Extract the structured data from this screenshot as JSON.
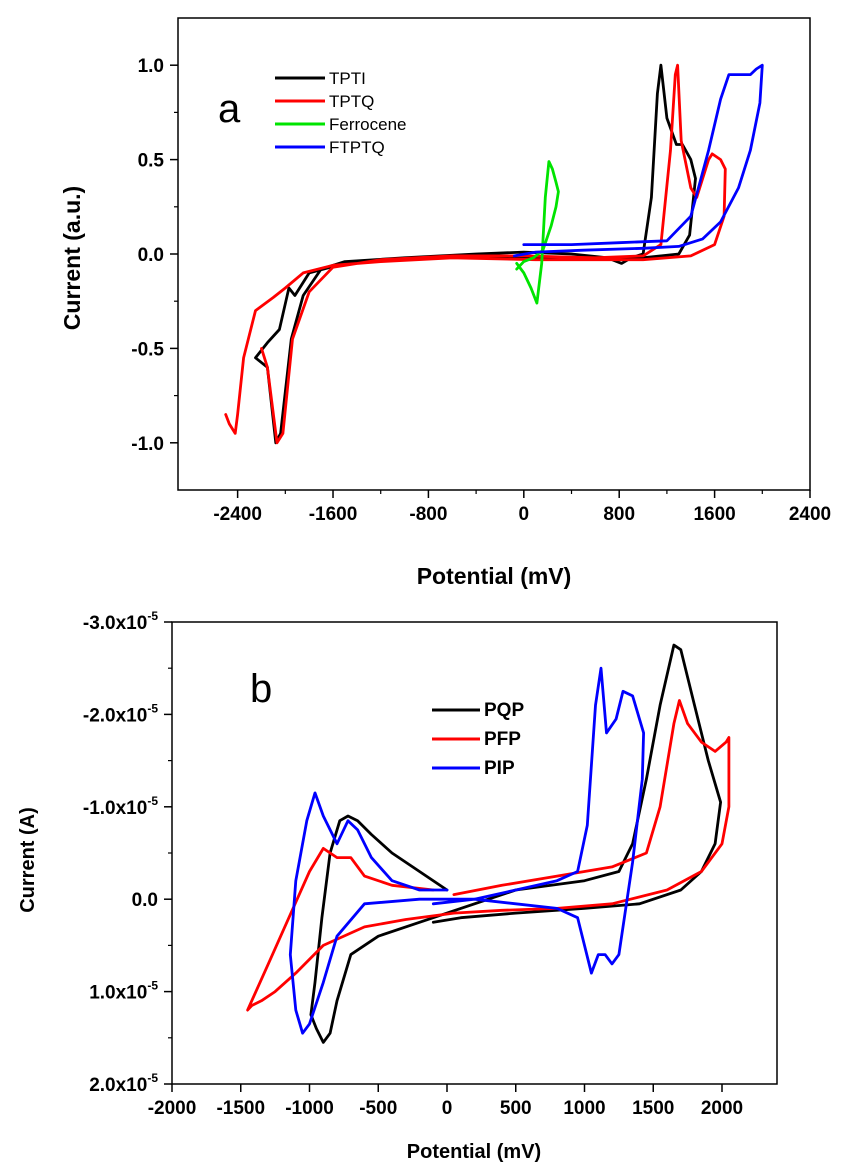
{
  "chart_data": [
    {
      "type": "line",
      "panel_label": "a",
      "xlabel": "Potential (mV)",
      "ylabel": "Current (a.u.)",
      "xlim": [
        -2900,
        2400
      ],
      "ylim": [
        -1.25,
        1.25
      ],
      "x_ticks": [
        -2400,
        -1600,
        -800,
        0,
        800,
        1600,
        2400
      ],
      "x_tick_labels": [
        "-2400",
        "-1600",
        "-800",
        "0",
        "800",
        "1600",
        "2400"
      ],
      "y_ticks": [
        -1.0,
        -0.5,
        0.0,
        0.5,
        1.0
      ],
      "y_tick_labels": [
        "-1.0",
        "-0.5",
        "0.0",
        "0.5",
        "1.0"
      ],
      "legend_position": "top-left",
      "series": [
        {
          "name": "TPTI",
          "color": "#000000",
          "points": [
            [
              -2250,
              -0.55
            ],
            [
              -2150,
              -0.6
            ],
            [
              -2080,
              -1.0
            ],
            [
              -2040,
              -0.95
            ],
            [
              -1950,
              -0.45
            ],
            [
              -1850,
              -0.22
            ],
            [
              -1700,
              -0.08
            ],
            [
              -1500,
              -0.04
            ],
            [
              -1000,
              -0.02
            ],
            [
              -400,
              0.0
            ],
            [
              0,
              0.01
            ],
            [
              400,
              0.0
            ],
            [
              700,
              -0.02
            ],
            [
              820,
              -0.05
            ],
            [
              900,
              -0.02
            ],
            [
              1000,
              0.0
            ],
            [
              1070,
              0.3
            ],
            [
              1120,
              0.85
            ],
            [
              1150,
              1.0
            ],
            [
              1200,
              0.72
            ],
            [
              1280,
              0.58
            ],
            [
              1330,
              0.58
            ],
            [
              1400,
              0.5
            ],
            [
              1440,
              0.4
            ],
            [
              1390,
              0.1
            ],
            [
              1300,
              0.0
            ],
            [
              1000,
              -0.02
            ],
            [
              600,
              -0.02
            ],
            [
              100,
              -0.02
            ],
            [
              -400,
              -0.01
            ],
            [
              -1000,
              -0.03
            ],
            [
              -1500,
              -0.05
            ],
            [
              -1800,
              -0.1
            ],
            [
              -1920,
              -0.22
            ],
            [
              -1970,
              -0.18
            ],
            [
              -2050,
              -0.4
            ],
            [
              -2150,
              -0.47
            ],
            [
              -2250,
              -0.55
            ]
          ]
        },
        {
          "name": "TPTQ",
          "color": "#ff0000",
          "points": [
            [
              -2200,
              -0.5
            ],
            [
              -2150,
              -0.6
            ],
            [
              -2100,
              -0.85
            ],
            [
              -2070,
              -1.0
            ],
            [
              -2020,
              -0.95
            ],
            [
              -1940,
              -0.45
            ],
            [
              -1800,
              -0.2
            ],
            [
              -1600,
              -0.07
            ],
            [
              -1200,
              -0.03
            ],
            [
              -600,
              -0.01
            ],
            [
              0,
              -0.01
            ],
            [
              600,
              -0.02
            ],
            [
              1000,
              -0.01
            ],
            [
              1150,
              0.05
            ],
            [
              1230,
              0.55
            ],
            [
              1270,
              0.95
            ],
            [
              1290,
              1.0
            ],
            [
              1320,
              0.6
            ],
            [
              1400,
              0.35
            ],
            [
              1450,
              0.3
            ],
            [
              1550,
              0.5
            ],
            [
              1580,
              0.53
            ],
            [
              1650,
              0.5
            ],
            [
              1690,
              0.45
            ],
            [
              1680,
              0.2
            ],
            [
              1600,
              0.05
            ],
            [
              1400,
              -0.01
            ],
            [
              1000,
              -0.03
            ],
            [
              600,
              -0.03
            ],
            [
              100,
              -0.03
            ],
            [
              -600,
              -0.02
            ],
            [
              -1200,
              -0.04
            ],
            [
              -1600,
              -0.06
            ],
            [
              -1850,
              -0.1
            ],
            [
              -2000,
              -0.18
            ],
            [
              -2100,
              -0.23
            ],
            [
              -2250,
              -0.3
            ],
            [
              -2350,
              -0.55
            ],
            [
              -2400,
              -0.85
            ],
            [
              -2420,
              -0.95
            ],
            [
              -2470,
              -0.9
            ],
            [
              -2500,
              -0.85
            ]
          ]
        },
        {
          "name": "Ferrocene",
          "color": "#00e400",
          "points": [
            [
              -60,
              -0.05
            ],
            [
              0,
              -0.1
            ],
            [
              60,
              -0.18
            ],
            [
              110,
              -0.26
            ],
            [
              150,
              -0.05
            ],
            [
              180,
              0.3
            ],
            [
              210,
              0.49
            ],
            [
              240,
              0.45
            ],
            [
              270,
              0.38
            ],
            [
              290,
              0.33
            ],
            [
              270,
              0.25
            ],
            [
              230,
              0.15
            ],
            [
              160,
              0.02
            ],
            [
              80,
              -0.02
            ],
            [
              0,
              -0.04
            ],
            [
              -60,
              -0.08
            ]
          ]
        },
        {
          "name": "FTPTQ",
          "color": "#0000ff",
          "points": [
            [
              0,
              0.05
            ],
            [
              400,
              0.05
            ],
            [
              800,
              0.06
            ],
            [
              1200,
              0.07
            ],
            [
              1400,
              0.2
            ],
            [
              1550,
              0.55
            ],
            [
              1650,
              0.82
            ],
            [
              1720,
              0.95
            ],
            [
              1800,
              0.95
            ],
            [
              1900,
              0.95
            ],
            [
              1950,
              0.98
            ],
            [
              2000,
              1.0
            ],
            [
              1980,
              0.8
            ],
            [
              1900,
              0.55
            ],
            [
              1800,
              0.35
            ],
            [
              1650,
              0.17
            ],
            [
              1500,
              0.08
            ],
            [
              1300,
              0.04
            ],
            [
              1000,
              0.03
            ],
            [
              500,
              0.02
            ],
            [
              100,
              0.01
            ],
            [
              -80,
              -0.01
            ]
          ]
        }
      ]
    },
    {
      "type": "line",
      "panel_label": "b",
      "xlabel": "Potential (mV)",
      "ylabel": "Current (A)",
      "xlim": [
        -2000,
        2400
      ],
      "ylim": [
        2e-05,
        -3e-05
      ],
      "y_axis_inverted": true,
      "x_ticks": [
        -2000,
        -1500,
        -1000,
        -500,
        0,
        500,
        1000,
        1500,
        2000
      ],
      "x_tick_labels": [
        "-2000",
        "-1500",
        "-1000",
        "-500",
        "0",
        "500",
        "1000",
        "1500",
        "2000"
      ],
      "y_ticks": [
        -3e-05,
        -2e-05,
        -1e-05,
        0.0,
        1e-05,
        2e-05
      ],
      "y_tick_labels": [
        {
          "base": "-3.0x10",
          "exp": "-5"
        },
        {
          "base": "-2.0x10",
          "exp": "-5"
        },
        {
          "base": "-1.0x10",
          "exp": "-5"
        },
        {
          "base": "0.0",
          "exp": ""
        },
        {
          "base": "1.0x10",
          "exp": "-5"
        },
        {
          "base": "2.0x10",
          "exp": "-5"
        }
      ],
      "legend_position": "top-center",
      "series": [
        {
          "name": "PQP",
          "color": "#000000",
          "points": [
            [
              0,
              -1e-06
            ],
            [
              -200,
              -3e-06
            ],
            [
              -400,
              -5e-06
            ],
            [
              -550,
              -7e-06
            ],
            [
              -650,
              -8.5e-06
            ],
            [
              -720,
              -9e-06
            ],
            [
              -780,
              -8.5e-06
            ],
            [
              -850,
              -5e-06
            ],
            [
              -910,
              2e-06
            ],
            [
              -960,
              9e-06
            ],
            [
              -990,
              1.25e-05
            ],
            [
              -950,
              1.4e-05
            ],
            [
              -900,
              1.55e-05
            ],
            [
              -850,
              1.45e-05
            ],
            [
              -800,
              1.1e-05
            ],
            [
              -700,
              6e-06
            ],
            [
              -500,
              4e-06
            ],
            [
              -200,
              2.5e-06
            ],
            [
              100,
              1e-06
            ],
            [
              500,
              -1e-06
            ],
            [
              1000,
              -2e-06
            ],
            [
              1250,
              -3e-06
            ],
            [
              1350,
              -6e-06
            ],
            [
              1450,
              -1.3e-05
            ],
            [
              1550,
              -2.1e-05
            ],
            [
              1650,
              -2.75e-05
            ],
            [
              1700,
              -2.7e-05
            ],
            [
              1800,
              -2.1e-05
            ],
            [
              1900,
              -1.5e-05
            ],
            [
              1990,
              -1.05e-05
            ],
            [
              1950,
              -6e-06
            ],
            [
              1850,
              -3e-06
            ],
            [
              1700,
              -1e-06
            ],
            [
              1400,
              5e-07
            ],
            [
              1000,
              1e-06
            ],
            [
              500,
              1.5e-06
            ],
            [
              100,
              2e-06
            ],
            [
              -100,
              2.5e-06
            ]
          ]
        },
        {
          "name": "PFP",
          "color": "#ff0000",
          "points": [
            [
              50,
              -5e-07
            ],
            [
              400,
              -1.5e-06
            ],
            [
              800,
              -2.5e-06
            ],
            [
              1200,
              -3.5e-06
            ],
            [
              1450,
              -5e-06
            ],
            [
              1550,
              -1e-05
            ],
            [
              1650,
              -1.9e-05
            ],
            [
              1690,
              -2.15e-05
            ],
            [
              1750,
              -1.9e-05
            ],
            [
              1850,
              -1.7e-05
            ],
            [
              1950,
              -1.6e-05
            ],
            [
              2030,
              -1.7e-05
            ],
            [
              2050,
              -1.75e-05
            ],
            [
              2050,
              -1e-05
            ],
            [
              2000,
              -6e-06
            ],
            [
              1850,
              -3e-06
            ],
            [
              1600,
              -1e-06
            ],
            [
              1200,
              5e-07
            ],
            [
              800,
              1e-06
            ],
            [
              400,
              1.2e-06
            ],
            [
              50,
              1.5e-06
            ],
            [
              -300,
              2.2e-06
            ],
            [
              -600,
              3e-06
            ],
            [
              -900,
              5e-06
            ],
            [
              -1100,
              8e-06
            ],
            [
              -1250,
              1e-05
            ],
            [
              -1350,
              1.1e-05
            ],
            [
              -1420,
              1.15e-05
            ],
            [
              -1450,
              1.2e-05
            ],
            [
              -1300,
              7e-06
            ],
            [
              -1150,
              2e-06
            ],
            [
              -1000,
              -3e-06
            ],
            [
              -900,
              -5.5e-06
            ],
            [
              -800,
              -4.5e-06
            ],
            [
              -700,
              -4.5e-06
            ],
            [
              -600,
              -2.5e-06
            ],
            [
              -400,
              -1.5e-06
            ],
            [
              -100,
              -1e-06
            ]
          ]
        },
        {
          "name": "PIP",
          "color": "#0000ff",
          "points": [
            [
              0,
              -1e-06
            ],
            [
              -200,
              -1e-06
            ],
            [
              -400,
              -2e-06
            ],
            [
              -550,
              -4.5e-06
            ],
            [
              -650,
              -7.5e-06
            ],
            [
              -720,
              -8.5e-06
            ],
            [
              -800,
              -6e-06
            ],
            [
              -900,
              -9e-06
            ],
            [
              -960,
              -1.15e-05
            ],
            [
              -1020,
              -8.5e-06
            ],
            [
              -1100,
              -2e-06
            ],
            [
              -1140,
              6e-06
            ],
            [
              -1100,
              1.2e-05
            ],
            [
              -1050,
              1.45e-05
            ],
            [
              -1000,
              1.35e-05
            ],
            [
              -900,
              9e-06
            ],
            [
              -800,
              4e-06
            ],
            [
              -600,
              5e-07
            ],
            [
              -200,
              0.0
            ],
            [
              200,
              0.0
            ],
            [
              500,
              5e-07
            ],
            [
              800,
              1e-06
            ],
            [
              950,
              2e-06
            ],
            [
              1050,
              8e-06
            ],
            [
              1100,
              6e-06
            ],
            [
              1150,
              6e-06
            ],
            [
              1200,
              7e-06
            ],
            [
              1250,
              6e-06
            ],
            [
              1350,
              -4e-06
            ],
            [
              1420,
              -1.3e-05
            ],
            [
              1430,
              -1.8e-05
            ],
            [
              1350,
              -2.2e-05
            ],
            [
              1280,
              -2.25e-05
            ],
            [
              1230,
              -1.95e-05
            ],
            [
              1160,
              -1.8e-05
            ],
            [
              1120,
              -2.5e-05
            ],
            [
              1080,
              -2.1e-05
            ],
            [
              1020,
              -8e-06
            ],
            [
              950,
              -3e-06
            ],
            [
              800,
              -2e-06
            ],
            [
              500,
              -1e-06
            ],
            [
              200,
              0.0
            ],
            [
              -100,
              5e-07
            ]
          ]
        }
      ]
    }
  ]
}
